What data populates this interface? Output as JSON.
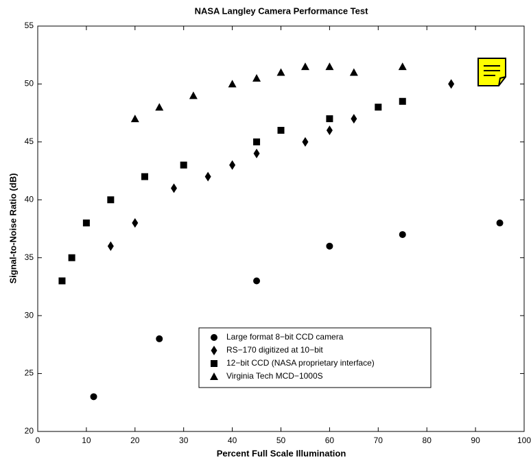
{
  "chart_data": {
    "type": "scatter",
    "title": "NASA Langley Camera Performance Test",
    "xlabel": "Percent Full Scale Illumination",
    "ylabel": "Signal-to-Noise Ratio (dB)",
    "xlim": [
      0,
      100
    ],
    "xticks": [
      0,
      10,
      20,
      30,
      40,
      50,
      60,
      70,
      80,
      90,
      100
    ],
    "ylim": [
      20,
      55
    ],
    "yticks": [
      20,
      25,
      30,
      35,
      40,
      45,
      50,
      55
    ],
    "grid": false,
    "legend_loc": "lower center",
    "series": [
      {
        "name": "Large format 8−bit CCD camera",
        "color": "#000000",
        "marker": "circle",
        "x": [
          11.5,
          25,
          45,
          60,
          75,
          95
        ],
        "values": [
          23,
          28,
          33,
          36,
          37,
          38
        ]
      },
      {
        "name": "RS−170 digitized at 10−bit",
        "color": "#000000",
        "marker": "diamond",
        "x": [
          15,
          20,
          28,
          35,
          40,
          45,
          55,
          60,
          65,
          85
        ],
        "values": [
          36,
          38,
          41,
          42,
          43,
          44,
          45,
          46,
          47,
          50
        ]
      },
      {
        "name": "12−bit CCD (NASA proprietary interface)",
        "color": "#000000",
        "marker": "square",
        "x": [
          5,
          7,
          10,
          15,
          22,
          30,
          45,
          50,
          60,
          70,
          75
        ],
        "values": [
          33,
          35,
          38,
          40,
          42,
          43,
          45,
          46,
          47,
          48,
          48.5
        ]
      },
      {
        "name": "Virginia Tech MCD−1000S",
        "color": "#000000",
        "marker": "triangle",
        "x": [
          20,
          25,
          32,
          40,
          45,
          50,
          55,
          60,
          65,
          75
        ],
        "values": [
          47,
          48,
          49,
          50,
          50.5,
          51,
          51.5,
          51.5,
          51,
          51.5
        ]
      }
    ]
  }
}
